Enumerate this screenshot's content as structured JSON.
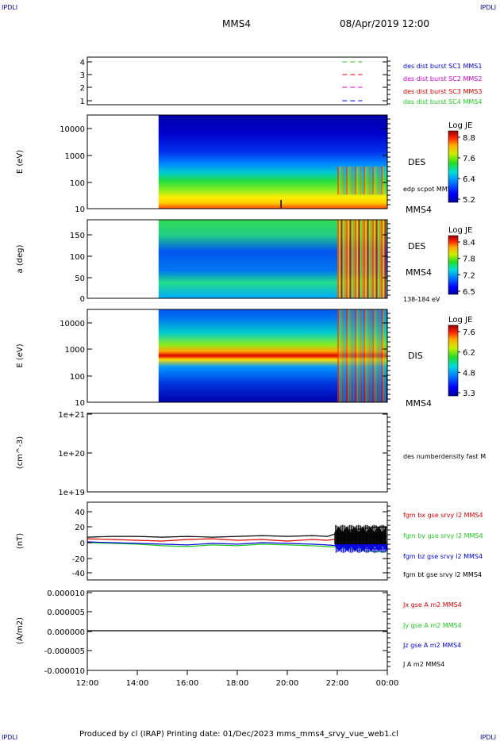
{
  "corner_labels": {
    "top_left": "IPDLI",
    "top_right": "IPDLI",
    "bottom_left": "IPDLI",
    "bottom_right": "IPDLI"
  },
  "header": {
    "spacecraft": "MMS4",
    "date": "08/Apr/2019 12:00"
  },
  "footer": {
    "text": "Produced by cl (IRAP)   Printing date: 01/Dec/2023   mms_mms4_srvy_vue_web1.cl"
  },
  "time_axis": {
    "ticks": [
      "12:00",
      "14:00",
      "16:00",
      "18:00",
      "20:00",
      "22:00",
      "00:00"
    ],
    "range_hours": [
      12,
      24
    ]
  },
  "colors": {
    "red": "#dd0000",
    "green": "#22cc22",
    "blue": "#0000dd",
    "black": "#000000",
    "magenta": "#cc00cc"
  },
  "chart_data": [
    {
      "id": "panel1",
      "type": "line",
      "y_ticks": [
        "1",
        "2",
        "3",
        "4"
      ],
      "ylim": [
        0.5,
        4.5
      ],
      "legend": [
        {
          "text": "des dist burst SC1 MMS1",
          "color": "#0000dd"
        },
        {
          "text": "des dist burst SC2 MMS2",
          "color": "#cc00cc"
        },
        {
          "text": "des dist burst SC3 MMS3",
          "color": "#dd0000"
        },
        {
          "text": "des dist burst SC4 MMS4",
          "color": "#22cc22"
        }
      ],
      "series": [
        {
          "y": 4,
          "color": "#22cc22",
          "x": [
            22.2,
            23.0
          ]
        },
        {
          "y": 3,
          "color": "#dd0000",
          "x": [
            22.2,
            23.0
          ]
        },
        {
          "y": 2,
          "color": "#cc00cc",
          "x": [
            22.2,
            23.0
          ]
        },
        {
          "y": 1,
          "color": "#0000dd",
          "x": [
            22.2,
            23.0
          ]
        }
      ]
    },
    {
      "id": "panel2",
      "type": "heatmap",
      "ylabel": "E (eV)",
      "y_scale": "log",
      "ylim": [
        10,
        30000
      ],
      "y_ticks": [
        "10",
        "100",
        "1000",
        "10000"
      ],
      "right_labels": [
        {
          "text": "DES",
          "color": "#000000"
        },
        {
          "text": "edp scpot MMS4",
          "color": "#000000"
        },
        {
          "text": "MMS4",
          "color": "#000000"
        }
      ],
      "colorbar": {
        "title": "Log JE",
        "ticks": [
          "8.8",
          "7.6",
          "6.4",
          "5.2"
        ],
        "range": [
          5.2,
          8.8
        ]
      },
      "data_start_hour": 14.85
    },
    {
      "id": "panel3",
      "type": "heatmap",
      "ylabel": "a (deg)",
      "ylim": [
        0,
        180
      ],
      "y_ticks": [
        "0",
        "50",
        "100",
        "150"
      ],
      "right_labels": [
        {
          "text": "DES",
          "color": "#000000"
        },
        {
          "text": "MMS4",
          "color": "#000000"
        },
        {
          "text": "138-184 eV",
          "color": "#000000"
        }
      ],
      "colorbar": {
        "title": "Log JE",
        "ticks": [
          "8.4",
          "7.8",
          "7.2",
          "6.5"
        ],
        "range": [
          6.5,
          8.4
        ]
      },
      "data_start_hour": 14.85
    },
    {
      "id": "panel4",
      "type": "heatmap",
      "ylabel": "E (eV)",
      "y_scale": "log",
      "ylim": [
        10,
        25000
      ],
      "y_ticks": [
        "10",
        "100",
        "1000",
        "10000"
      ],
      "right_labels": [
        {
          "text": "DIS",
          "color": "#000000"
        },
        {
          "text": "MMS4",
          "color": "#000000"
        }
      ],
      "colorbar": {
        "title": "Log JE",
        "ticks": [
          "7.6",
          "6.2",
          "4.8",
          "3.3"
        ],
        "range": [
          3.3,
          7.6
        ]
      },
      "data_start_hour": 14.85
    },
    {
      "id": "panel5",
      "type": "line",
      "ylabel": "(cm^-3)",
      "y_ticks": [
        "1e+19",
        "1e+20",
        "1e+21"
      ],
      "right_labels": [
        {
          "text": "des numberdensity fast M",
          "color": "#000000"
        }
      ]
    },
    {
      "id": "panel6",
      "type": "line",
      "ylabel": "(nT)",
      "ylim": [
        -50,
        50
      ],
      "y_ticks": [
        "-40",
        "-20",
        "0",
        "20",
        "40"
      ],
      "right_labels": [
        {
          "text": "fgm bx gse srvy l2 MMS4",
          "color": "#dd0000"
        },
        {
          "text": "fgm by gse srvy l2 MMS4",
          "color": "#22cc22"
        },
        {
          "text": "fgm bz gse srvy l2 MMS4",
          "color": "#0000dd"
        },
        {
          "text": "fgm bt gse srvy l2 MMS4",
          "color": "#000000"
        }
      ],
      "series": [
        {
          "color": "#22cc22",
          "x": [
            12,
            13,
            14,
            15,
            16,
            17,
            18,
            19,
            20,
            21,
            21.6,
            22,
            22.5,
            23,
            23.5,
            24
          ],
          "y": [
            -2,
            -3,
            -4,
            -6,
            -7,
            -5,
            -6,
            -4,
            -5,
            -6,
            -7,
            -8,
            -10,
            -12,
            -14,
            -14
          ]
        },
        {
          "color": "#0000dd",
          "x": [
            12,
            13,
            14,
            15,
            16,
            17,
            18,
            19,
            20,
            21,
            21.6,
            22,
            22.5,
            23,
            23.5,
            24
          ],
          "y": [
            -1,
            -2,
            -3,
            -4,
            -5,
            -3,
            -4,
            -2,
            -3,
            -4,
            -5,
            -6,
            -8,
            -9,
            -10,
            -10
          ]
        },
        {
          "color": "#dd0000",
          "x": [
            12,
            13,
            14,
            15,
            16,
            17,
            18,
            19,
            20,
            21,
            21.6,
            22,
            22.5,
            23,
            23.5,
            24
          ],
          "y": [
            3,
            2,
            1,
            0,
            2,
            3,
            1,
            2,
            0,
            2,
            1,
            3,
            4,
            5,
            6,
            6
          ]
        },
        {
          "color": "#000000",
          "x": [
            12,
            13,
            14,
            15,
            16,
            17,
            18,
            19,
            20,
            21,
            21.6,
            22,
            22.5,
            23,
            23.5,
            24
          ],
          "y": [
            5,
            6,
            6,
            5,
            6,
            5,
            6,
            7,
            6,
            7,
            6,
            10,
            14,
            16,
            18,
            18
          ]
        }
      ]
    },
    {
      "id": "panel7",
      "type": "line",
      "ylabel": "(A/m2)",
      "ylim": [
        -1e-05,
        1e-05
      ],
      "y_ticks": [
        "-0.000010",
        "-0.000005",
        "0.000000",
        "0.000005",
        "0.000010"
      ],
      "right_labels": [
        {
          "text": "Jx gse A m2 MMS4",
          "color": "#dd0000"
        },
        {
          "text": "Jy gse A m2 MMS4",
          "color": "#22cc22"
        },
        {
          "text": "Jz gse A m2 MMS4",
          "color": "#0000dd"
        },
        {
          "text": "J A m2 MMS4",
          "color": "#000000"
        }
      ],
      "series": [
        {
          "color": "#000000",
          "x": [
            12,
            24
          ],
          "y": [
            0,
            0
          ]
        }
      ]
    }
  ]
}
